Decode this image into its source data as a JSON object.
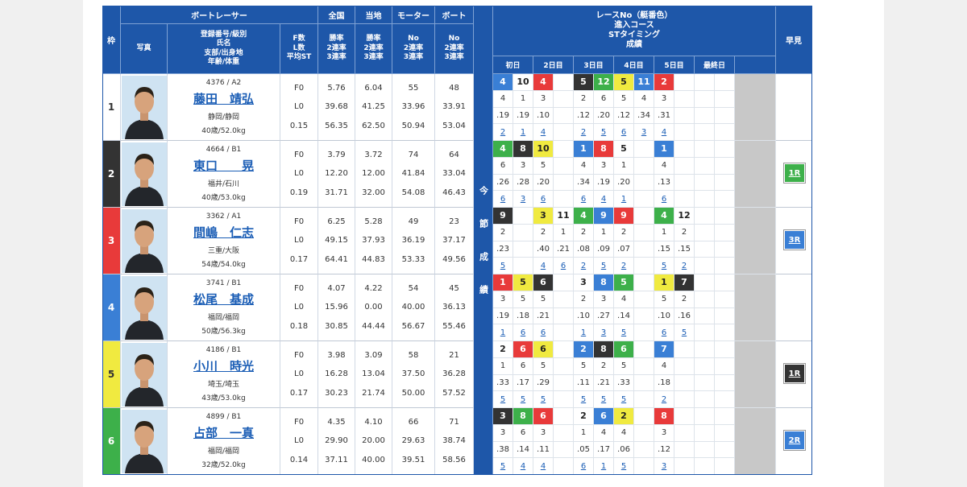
{
  "header": {
    "racer": "ボートレーサー",
    "waku": "枠",
    "photo": "写真",
    "info": [
      "登録番号/級別",
      "氏名",
      "支部/出身地",
      "年齢/体重"
    ],
    "fl": [
      "F数",
      "L数",
      "平均ST"
    ],
    "groups": [
      {
        "title": "全国",
        "labels": [
          "勝率",
          "2連率",
          "3連率"
        ]
      },
      {
        "title": "当地",
        "labels": [
          "勝率",
          "2連率",
          "3連率"
        ]
      },
      {
        "title": "モーター",
        "labels": [
          "No",
          "2連率",
          "3連率"
        ]
      },
      {
        "title": "ボート",
        "labels": [
          "No",
          "2連率",
          "3連率"
        ]
      }
    ],
    "session": "今節成績",
    "results_title": [
      "レースNo（艇番色）",
      "進入コース",
      "STタイミング",
      "成績"
    ],
    "days": [
      "初日",
      "2日目",
      "3日目",
      "4日目",
      "5日目",
      "最終日"
    ],
    "hayami": "早見"
  },
  "racers": [
    {
      "waku": "1",
      "waku_color": "#ffffff",
      "reg": "4376 / A2",
      "name": "藤田　靖弘",
      "branch": "静岡/静岡",
      "age_weight": "40歳/52.0kg",
      "f": "F0",
      "l": "L0",
      "st": "0.15",
      "stats": [
        [
          "5.76",
          "39.68",
          "56.35"
        ],
        [
          "6.04",
          "41.25",
          "62.50"
        ],
        [
          "55",
          "33.96",
          "50.94"
        ],
        [
          "48",
          "33.91",
          "53.04"
        ]
      ],
      "results": [
        {
          "race": "4",
          "color": "#3a7fd5",
          "course": "4",
          "st": ".19",
          "result": "2"
        },
        {
          "race": "10",
          "color": "#ffffff",
          "course": "1",
          "st": ".19",
          "result": "1"
        },
        {
          "race": "4",
          "color": "#e83a3a",
          "course": "3",
          "st": ".10",
          "result": "4"
        },
        null,
        {
          "race": "5",
          "color": "#333333",
          "course": "2",
          "st": ".12",
          "result": "2"
        },
        {
          "race": "12",
          "color": "#3db04a",
          "course": "6",
          "st": ".20",
          "result": "5"
        },
        {
          "race": "5",
          "color": "#f0ea40",
          "course": "5",
          "st": ".12",
          "result": "6"
        },
        {
          "race": "11",
          "color": "#3a7fd5",
          "course": "4",
          "st": ".34",
          "result": "3"
        },
        {
          "race": "2",
          "color": "#e83a3a",
          "course": "3",
          "st": ".31",
          "result": "4"
        },
        null,
        null,
        null
      ],
      "hayami": null
    },
    {
      "waku": "2",
      "waku_color": "#333333",
      "reg": "4664 / B1",
      "name": "東口　　晃",
      "branch": "福井/石川",
      "age_weight": "40歳/53.0kg",
      "f": "F0",
      "l": "L0",
      "st": "0.19",
      "stats": [
        [
          "3.79",
          "12.20",
          "31.71"
        ],
        [
          "3.72",
          "12.00",
          "32.00"
        ],
        [
          "74",
          "41.84",
          "54.08"
        ],
        [
          "64",
          "33.04",
          "46.43"
        ]
      ],
      "results": [
        {
          "race": "4",
          "color": "#3db04a",
          "course": "6",
          "st": ".26",
          "result": "6"
        },
        {
          "race": "8",
          "color": "#333333",
          "course": "3",
          "st": ".28",
          "result": "3"
        },
        {
          "race": "10",
          "color": "#f0ea40",
          "course": "5",
          "st": ".20",
          "result": "6"
        },
        null,
        {
          "race": "1",
          "color": "#3a7fd5",
          "course": "4",
          "st": ".34",
          "result": "6"
        },
        {
          "race": "8",
          "color": "#e83a3a",
          "course": "3",
          "st": ".19",
          "result": "4"
        },
        {
          "race": "5",
          "color": "#ffffff",
          "course": "1",
          "st": ".20",
          "result": "1"
        },
        null,
        {
          "race": "1",
          "color": "#3a7fd5",
          "course": "4",
          "st": ".13",
          "result": "6"
        },
        null,
        null,
        null
      ],
      "hayami": {
        "label": "1R",
        "color": "#3db04a"
      }
    },
    {
      "waku": "3",
      "waku_color": "#e83a3a",
      "reg": "3362 / A1",
      "name": "間嶋　仁志",
      "branch": "三重/大阪",
      "age_weight": "54歳/54.0kg",
      "f": "F0",
      "l": "L0",
      "st": "0.17",
      "stats": [
        [
          "6.25",
          "49.15",
          "64.41"
        ],
        [
          "5.28",
          "37.93",
          "44.83"
        ],
        [
          "49",
          "36.19",
          "53.33"
        ],
        [
          "23",
          "37.17",
          "49.56"
        ]
      ],
      "results": [
        {
          "race": "9",
          "color": "#333333",
          "course": "2",
          "st": ".23",
          "result": "5"
        },
        null,
        {
          "race": "3",
          "color": "#f0ea40",
          "course": "2",
          "st": ".40",
          "result": "4"
        },
        {
          "race": "11",
          "color": "#ffffff",
          "course": "1",
          "st": ".21",
          "result": "6"
        },
        {
          "race": "4",
          "color": "#3db04a",
          "course": "2",
          "st": ".08",
          "result": "2"
        },
        {
          "race": "9",
          "color": "#3a7fd5",
          "course": "1",
          "st": ".09",
          "result": "5"
        },
        {
          "race": "9",
          "color": "#e83a3a",
          "course": "2",
          "st": ".07",
          "result": "2"
        },
        null,
        {
          "race": "4",
          "color": "#3db04a",
          "course": "1",
          "st": ".15",
          "result": "5"
        },
        {
          "race": "12",
          "color": "#ffffff",
          "course": "2",
          "st": ".15",
          "result": "2"
        },
        null,
        null
      ],
      "hayami": {
        "label": "3R",
        "color": "#3a7fd5"
      }
    },
    {
      "waku": "4",
      "waku_color": "#3a7fd5",
      "reg": "3741 / B1",
      "name": "松尾　基成",
      "branch": "福岡/福岡",
      "age_weight": "50歳/56.3kg",
      "f": "F0",
      "l": "L0",
      "st": "0.18",
      "stats": [
        [
          "4.07",
          "15.96",
          "30.85"
        ],
        [
          "4.22",
          "0.00",
          "44.44"
        ],
        [
          "54",
          "40.00",
          "56.67"
        ],
        [
          "45",
          "36.13",
          "55.46"
        ]
      ],
      "results": [
        {
          "race": "1",
          "color": "#e83a3a",
          "course": "3",
          "st": ".19",
          "result": "1"
        },
        {
          "race": "5",
          "color": "#f0ea40",
          "course": "5",
          "st": ".18",
          "result": "6"
        },
        {
          "race": "6",
          "color": "#333333",
          "course": "5",
          "st": ".21",
          "result": "6"
        },
        null,
        {
          "race": "3",
          "color": "#ffffff",
          "course": "2",
          "st": ".10",
          "result": "1"
        },
        {
          "race": "8",
          "color": "#3a7fd5",
          "course": "3",
          "st": ".27",
          "result": "3"
        },
        {
          "race": "5",
          "color": "#3db04a",
          "course": "4",
          "st": ".14",
          "result": "5"
        },
        null,
        {
          "race": "1",
          "color": "#f0ea40",
          "course": "5",
          "st": ".10",
          "result": "6"
        },
        {
          "race": "7",
          "color": "#333333",
          "course": "2",
          "st": ".16",
          "result": "5"
        },
        null,
        null
      ],
      "hayami": null
    },
    {
      "waku": "5",
      "waku_color": "#f0ea40",
      "reg": "4186 / B1",
      "name": "小川　時光",
      "branch": "埼玉/埼玉",
      "age_weight": "43歳/53.0kg",
      "f": "F0",
      "l": "L0",
      "st": "0.17",
      "stats": [
        [
          "3.98",
          "16.28",
          "30.23"
        ],
        [
          "3.09",
          "13.04",
          "21.74"
        ],
        [
          "58",
          "37.50",
          "50.00"
        ],
        [
          "21",
          "36.28",
          "57.52"
        ]
      ],
      "results": [
        {
          "race": "2",
          "color": "#ffffff",
          "course": "1",
          "st": ".33",
          "result": "5"
        },
        {
          "race": "6",
          "color": "#e83a3a",
          "course": "6",
          "st": ".17",
          "result": "5"
        },
        {
          "race": "6",
          "color": "#f0ea40",
          "course": "5",
          "st": ".29",
          "result": "5"
        },
        null,
        {
          "race": "2",
          "color": "#3a7fd5",
          "course": "5",
          "st": ".11",
          "result": "5"
        },
        {
          "race": "8",
          "color": "#333333",
          "course": "2",
          "st": ".21",
          "result": "5"
        },
        {
          "race": "6",
          "color": "#3db04a",
          "course": "5",
          "st": ".33",
          "result": "5"
        },
        null,
        {
          "race": "7",
          "color": "#3a7fd5",
          "course": "4",
          "st": ".18",
          "result": "2"
        },
        null,
        null,
        null
      ],
      "hayami": {
        "label": "1R",
        "color": "#333333"
      }
    },
    {
      "waku": "6",
      "waku_color": "#3db04a",
      "reg": "4899 / B1",
      "name": "占部　一真",
      "branch": "福岡/福岡",
      "age_weight": "32歳/52.0kg",
      "f": "F0",
      "l": "L0",
      "st": "0.14",
      "stats": [
        [
          "4.35",
          "29.90",
          "37.11"
        ],
        [
          "4.10",
          "20.00",
          "40.00"
        ],
        [
          "66",
          "29.63",
          "39.51"
        ],
        [
          "71",
          "38.74",
          "58.56"
        ]
      ],
      "results": [
        {
          "race": "3",
          "color": "#333333",
          "course": "3",
          "st": ".38",
          "result": "5"
        },
        {
          "race": "8",
          "color": "#3db04a",
          "course": "6",
          "st": ".14",
          "result": "4"
        },
        {
          "race": "6",
          "color": "#e83a3a",
          "course": "3",
          "st": ".11",
          "result": "4"
        },
        null,
        {
          "race": "2",
          "color": "#ffffff",
          "course": "1",
          "st": ".05",
          "result": "6"
        },
        {
          "race": "6",
          "color": "#3a7fd5",
          "course": "4",
          "st": ".17",
          "result": "1"
        },
        {
          "race": "2",
          "color": "#f0ea40",
          "course": "4",
          "st": ".06",
          "result": "5"
        },
        null,
        {
          "race": "8",
          "color": "#e83a3a",
          "course": "3",
          "st": ".12",
          "result": "3"
        },
        null,
        null,
        null
      ],
      "hayami": {
        "label": "2R",
        "color": "#3a7fd5"
      }
    }
  ]
}
